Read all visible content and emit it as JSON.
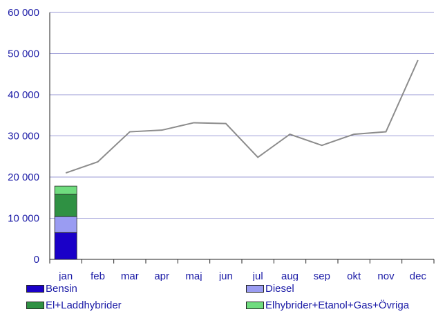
{
  "chart_data": {
    "type": "bar",
    "categories": [
      "jan",
      "feb",
      "mar",
      "apr",
      "maj",
      "jun",
      "jul",
      "aug",
      "sep",
      "okt",
      "nov",
      "dec"
    ],
    "ylim": [
      0,
      60000
    ],
    "yticks": [
      0,
      10000,
      20000,
      30000,
      40000,
      50000,
      60000
    ],
    "ytick_labels": [
      "0",
      "10 000",
      "20 000",
      "30 000",
      "40 000",
      "50 000",
      "60 000"
    ],
    "grid": true,
    "legend_position": "bottom",
    "stacked_series": [
      {
        "name": "Bensin",
        "color": "#1a00c8",
        "values": [
          6500,
          null,
          null,
          null,
          null,
          null,
          null,
          null,
          null,
          null,
          null,
          null
        ]
      },
      {
        "name": "Diesel",
        "color": "#9a9cf2",
        "values": [
          3900,
          null,
          null,
          null,
          null,
          null,
          null,
          null,
          null,
          null,
          null,
          null
        ]
      },
      {
        "name": "El+Laddhybrider",
        "color": "#2f9143",
        "values": [
          5400,
          null,
          null,
          null,
          null,
          null,
          null,
          null,
          null,
          null,
          null,
          null
        ]
      },
      {
        "name": "Elhybrider+Etanol+Gas+Övriga",
        "color": "#6fdc7e",
        "values": [
          2000,
          null,
          null,
          null,
          null,
          null,
          null,
          null,
          null,
          null,
          null,
          null
        ]
      }
    ],
    "line_series": {
      "color": "#8c8c8c",
      "values": [
        21000,
        23700,
        31000,
        31400,
        33200,
        33000,
        24800,
        30400,
        27700,
        30400,
        31000,
        48400
      ]
    }
  }
}
